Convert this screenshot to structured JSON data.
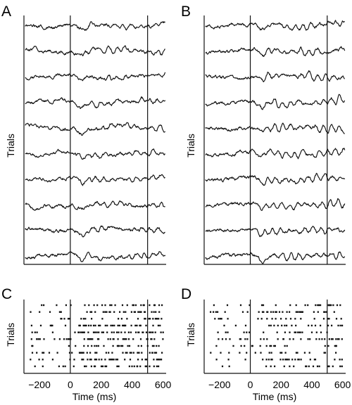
{
  "figure": {
    "panel_labels": {
      "A": "A",
      "B": "B",
      "C": "C",
      "D": "D"
    },
    "y_label": "Trials",
    "x_label": "Time (ms)"
  },
  "chart_data": [
    {
      "panel": "A",
      "type": "line",
      "title": "",
      "ylabel": "Trials",
      "xlabel": "",
      "xlim": [
        -300,
        620
      ],
      "event_markers_ms": [
        0,
        500
      ],
      "trial_count": 10,
      "grid": false,
      "legend": "none"
    },
    {
      "panel": "B",
      "type": "line",
      "title": "",
      "ylabel": "Trials",
      "xlabel": "",
      "xlim": [
        -300,
        620
      ],
      "event_markers_ms": [
        0,
        500
      ],
      "trial_count": 10,
      "grid": false,
      "legend": "none"
    },
    {
      "panel": "C",
      "type": "scatter",
      "title": "",
      "ylabel": "Trials",
      "xlabel": "Time (ms)",
      "xlim": [
        -300,
        620
      ],
      "x_ticks": [
        -200,
        0,
        200,
        400,
        600
      ],
      "x_tick_labels": [
        "−200",
        "0",
        "200",
        "400",
        "600"
      ],
      "event_markers_ms": [
        0,
        500
      ],
      "trial_count": 10,
      "grid": false,
      "legend": "none"
    },
    {
      "panel": "D",
      "type": "scatter",
      "title": "",
      "ylabel": "Trials",
      "xlabel": "Time (ms)",
      "xlim": [
        -300,
        620
      ],
      "x_ticks": [
        -200,
        0,
        200,
        400,
        600
      ],
      "x_tick_labels": [
        "−200",
        "0",
        "200",
        "400",
        "600"
      ],
      "event_markers_ms": [
        0,
        500
      ],
      "trial_count": 10,
      "grid": false,
      "legend": "none"
    }
  ]
}
